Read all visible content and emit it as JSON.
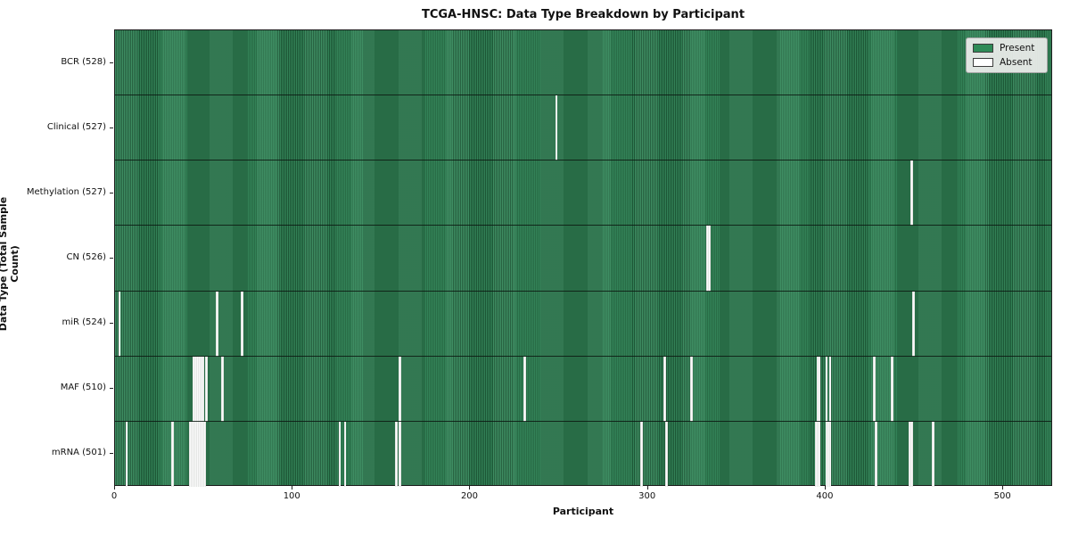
{
  "colors": {
    "present": "#2e8b57",
    "present_stripe_light": "#36895c",
    "present_stripe_dark": "#1d5a38",
    "absent": "#fafafa",
    "plot_border": "#1c1c1c",
    "legend_bg": "#e9ebe9",
    "legend_border": "#a6a6a6"
  },
  "chart_data": {
    "type": "heatmap",
    "title": "TCGA-HNSC: Data Type Breakdown by Participant",
    "xlabel": "Participant",
    "ylabel": "Data Type (Total Sample Count)",
    "legend_position": "upper right",
    "legend_labels": {
      "present": "Present",
      "absent": "Absent"
    },
    "grid": false,
    "x_range": [
      0,
      528
    ],
    "x_ticks": [
      0,
      100,
      200,
      300,
      400,
      500
    ],
    "n_participants": 528,
    "cell_values": "1 = Present (green), 0 = Absent (white)",
    "rows": [
      {
        "label": "BCR (528)",
        "data_type": "BCR",
        "total_samples": 528,
        "absent_count": 0,
        "absent_participants": []
      },
      {
        "label": "Clinical (527)",
        "data_type": "Clinical",
        "total_samples": 527,
        "absent_count": 1,
        "absent_participants": [
          248
        ]
      },
      {
        "label": "Methylation (527)",
        "data_type": "Methylation",
        "total_samples": 527,
        "absent_count": 1,
        "absent_participants": [
          448
        ]
      },
      {
        "label": "CN (526)",
        "data_type": "CN",
        "total_samples": 526,
        "absent_count": 2,
        "absent_participants": [
          333,
          334
        ]
      },
      {
        "label": "miR (524)",
        "data_type": "miR",
        "total_samples": 524,
        "absent_count": 4,
        "absent_participants": [
          2,
          57,
          71,
          449
        ]
      },
      {
        "label": "MAF (510)",
        "data_type": "MAF",
        "total_samples": 510,
        "absent_count": 18,
        "absent_participants": [
          44,
          45,
          46,
          47,
          48,
          49,
          51,
          60,
          160,
          230,
          309,
          324,
          395,
          396,
          400,
          402,
          427,
          437
        ]
      },
      {
        "label": "mRNA (501)",
        "data_type": "mRNA",
        "total_samples": 501,
        "absent_count": 27,
        "absent_participants": [
          6,
          32,
          42,
          43,
          44,
          45,
          46,
          47,
          48,
          49,
          50,
          126,
          129,
          158,
          160,
          296,
          310,
          394,
          395,
          396,
          400,
          401,
          402,
          428,
          447,
          448,
          460
        ]
      }
    ]
  }
}
